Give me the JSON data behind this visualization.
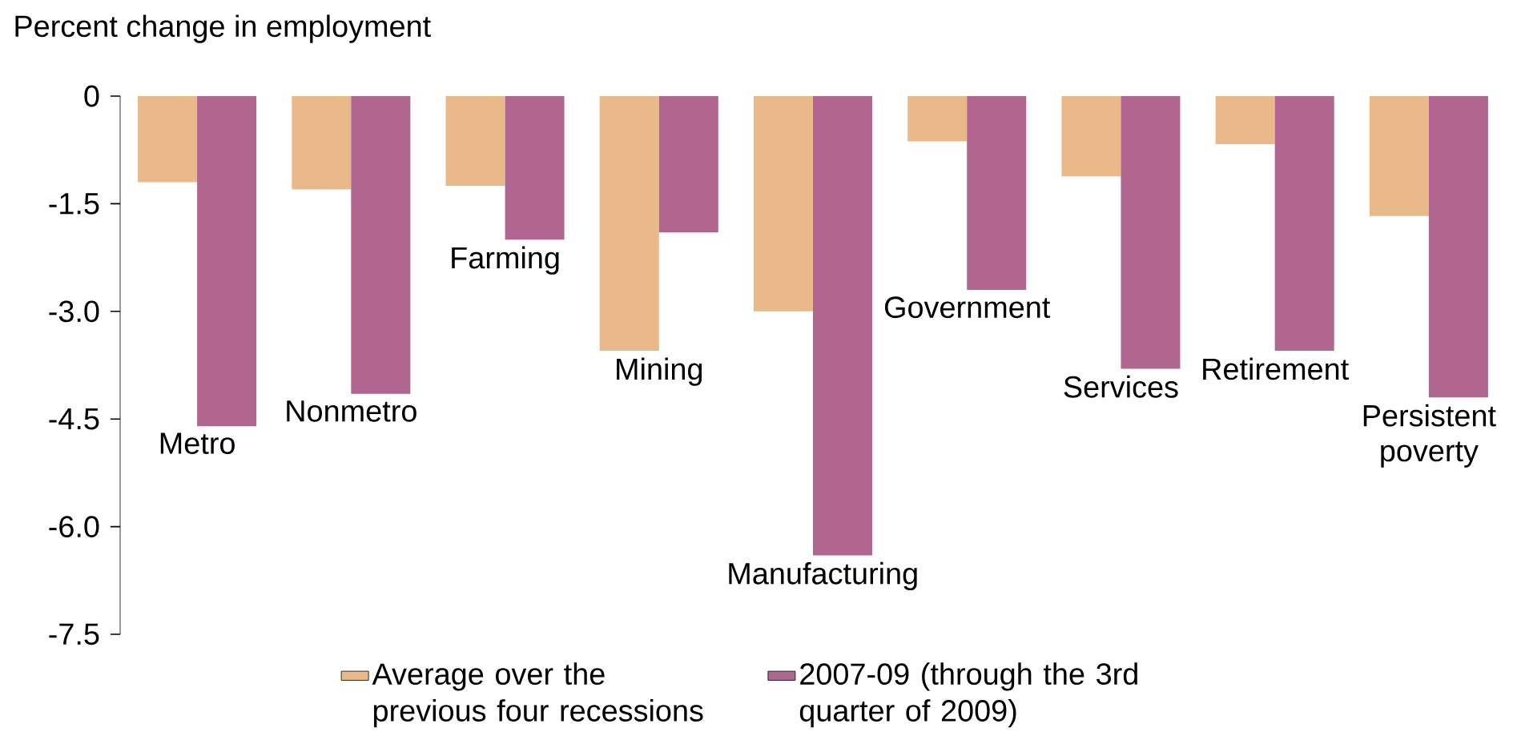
{
  "chart_data": {
    "type": "bar",
    "ylabel": "Percent change in employment",
    "categories": [
      "Metro",
      "Nonmetro",
      "Farming",
      "Mining",
      "Manufacturing",
      "Government",
      "Services",
      "Retirement",
      "Persistent poverty"
    ],
    "series": [
      {
        "name": "Average over the previous four recessions",
        "color": "#e9b98a",
        "values": [
          -1.2,
          -1.3,
          -1.25,
          -3.55,
          -3.0,
          -0.63,
          -1.12,
          -0.67,
          -1.67
        ]
      },
      {
        "name": "2007-09 (through the 3rd quarter of 2009)",
        "color": "#b0668e",
        "values": [
          -4.6,
          -4.15,
          -2.0,
          -1.9,
          -6.4,
          -2.7,
          -3.8,
          -3.55,
          -4.2
        ]
      }
    ],
    "ylim": [
      -7.5,
      0
    ],
    "yticks": [
      0,
      -1.5,
      {
        "value": -3,
        "label": "-3.0"
      },
      -4.5,
      {
        "value": -6,
        "label": "-6.0"
      },
      -7.5
    ],
    "grid": false,
    "legend": "bottom"
  }
}
